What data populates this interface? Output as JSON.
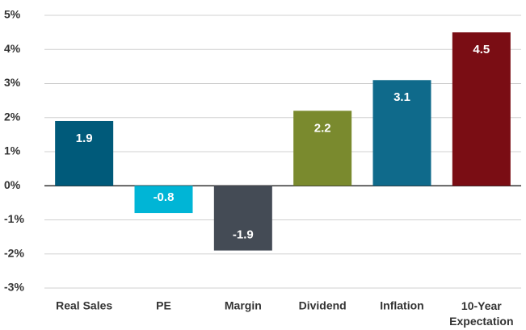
{
  "chart_data": {
    "type": "bar",
    "categories": [
      "Real Sales",
      "PE",
      "Margin",
      "Dividend",
      "Inflation",
      "10-Year Expectation"
    ],
    "values": [
      1.9,
      -0.8,
      -1.9,
      2.2,
      3.1,
      4.5
    ],
    "colors": [
      "#005a7a",
      "#00b5d6",
      "#444b55",
      "#7a8a2e",
      "#0f6a8b",
      "#7a0d14"
    ],
    "ylim": [
      -3,
      5
    ],
    "yticks": [
      {
        "value": -3,
        "label": "-3%"
      },
      {
        "value": -2,
        "label": "-2%"
      },
      {
        "value": -1,
        "label": "-1%"
      },
      {
        "value": 0,
        "label": "0%"
      },
      {
        "value": 1,
        "label": "1%"
      },
      {
        "value": 2,
        "label": "2%"
      },
      {
        "value": 3,
        "label": "3%"
      },
      {
        "value": 4,
        "label": "4%"
      },
      {
        "value": 5,
        "label": "5%"
      }
    ],
    "grid": true
  }
}
